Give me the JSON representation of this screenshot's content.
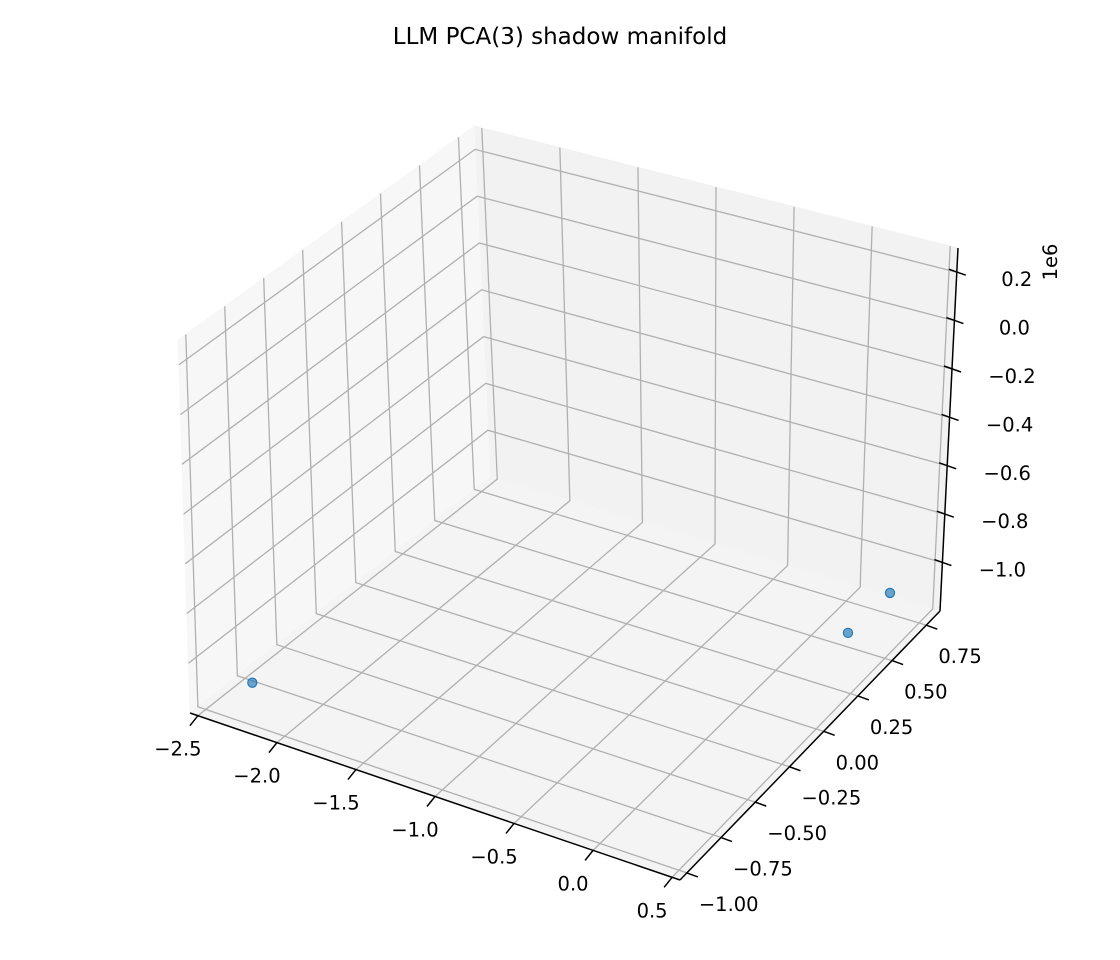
{
  "chart_data": {
    "type": "scatter",
    "projection": "3d",
    "title": "LLM PCA(3) shadow manifold",
    "xlabel": "",
    "ylabel": "",
    "zlabel": "",
    "x_ticks": [
      "−2.5",
      "−2.0",
      "−1.5",
      "−1.0",
      "−0.5",
      "0.0",
      "0.5"
    ],
    "y_ticks": [
      "−1.00",
      "−0.75",
      "−0.50",
      "−0.25",
      "0.00",
      "0.25",
      "0.50",
      "0.75"
    ],
    "z_ticks": [
      "−1.0",
      "−0.8",
      "−0.6",
      "−0.4",
      "−0.2",
      "0.0",
      "0.2"
    ],
    "z_offset_label": "1e6",
    "xlim": [
      -2.55,
      0.55
    ],
    "ylim": [
      -1.05,
      0.85
    ],
    "zlim": [
      -1.2,
      0.3
    ],
    "grid": true,
    "marker_color": "#1f77b4",
    "points": [
      {
        "x": -2.3,
        "y": -0.9,
        "z": -1.1
      },
      {
        "x": 0.25,
        "y": 0.8,
        "z": -1.15
      },
      {
        "x": 0.3,
        "y": 0.44,
        "z": -1.1
      }
    ]
  }
}
